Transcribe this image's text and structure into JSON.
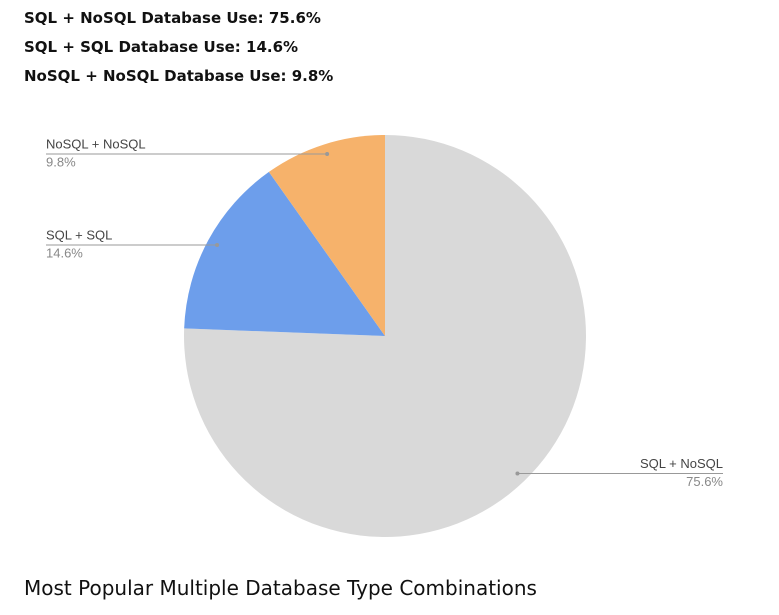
{
  "summary_lines": [
    "SQL + NoSQL Database Use: 75.6%",
    "SQL + SQL Database Use: 14.6%",
    "NoSQL + NoSQL Database Use: 9.8%"
  ],
  "chart_data": {
    "type": "pie",
    "categories": [
      "SQL + NoSQL",
      "SQL + SQL",
      "NoSQL + NoSQL"
    ],
    "values": [
      75.6,
      14.6,
      9.8
    ],
    "value_labels": [
      "75.6%",
      "14.6%",
      "9.8%"
    ],
    "colors": [
      "#d9d9d9",
      "#6d9eeb",
      "#f6b26b"
    ]
  },
  "heading": "Most Popular Multiple Database Type Combinations"
}
